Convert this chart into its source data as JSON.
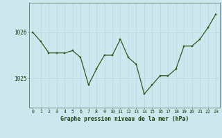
{
  "x": [
    0,
    1,
    2,
    3,
    4,
    5,
    6,
    7,
    8,
    9,
    10,
    11,
    12,
    13,
    14,
    15,
    16,
    17,
    18,
    19,
    20,
    21,
    22,
    23
  ],
  "y": [
    1026.0,
    1025.8,
    1025.55,
    1025.55,
    1025.55,
    1025.6,
    1025.45,
    1024.85,
    1025.2,
    1025.5,
    1025.5,
    1025.85,
    1025.45,
    1025.3,
    1024.65,
    1024.85,
    1025.05,
    1025.05,
    1025.2,
    1025.7,
    1025.7,
    1025.85,
    1026.1,
    1026.4
  ],
  "line_color": "#2d5a1b",
  "marker_color": "#2d5a1b",
  "bg_color": "#cce8ee",
  "grid_color": "#b8d8e0",
  "label_color": "#1a3a0a",
  "xlabel": "Graphe pression niveau de la mer (hPa)",
  "ytick_labels": [
    "1025",
    "1026"
  ],
  "ytick_values": [
    1025.0,
    1026.0
  ],
  "ylim": [
    1024.35,
    1026.65
  ],
  "xlim": [
    -0.5,
    23.5
  ],
  "figsize": [
    3.2,
    2.0
  ],
  "dpi": 100
}
